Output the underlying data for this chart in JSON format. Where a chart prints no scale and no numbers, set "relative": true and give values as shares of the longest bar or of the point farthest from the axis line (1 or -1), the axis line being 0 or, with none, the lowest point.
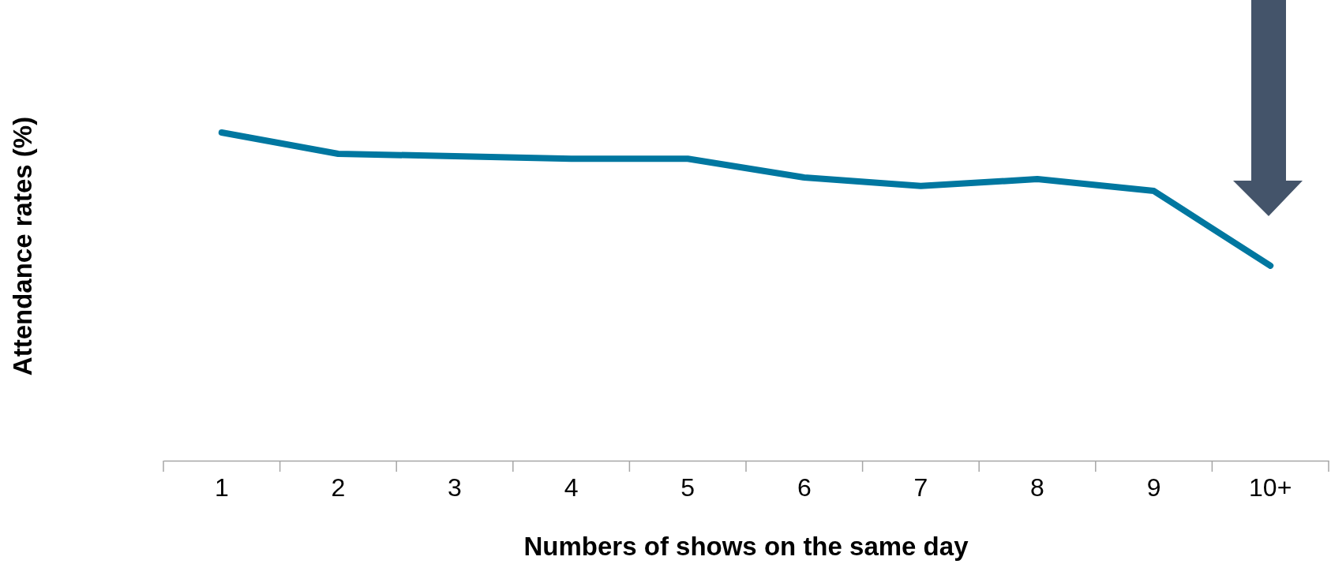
{
  "chart_data": {
    "type": "line",
    "relative": true,
    "xlabel": "Numbers of shows on the same day",
    "ylabel": "Attendance rates (%)",
    "categories": [
      "1",
      "2",
      "3",
      "4",
      "5",
      "6",
      "7",
      "8",
      "9",
      "10+"
    ],
    "series": [
      {
        "color": "#0077a0",
        "values": [
          1,
          0.935,
          0.928,
          0.92,
          0.92,
          0.863,
          0.837,
          0.858,
          0.822,
          0.594
        ]
      }
    ],
    "marker": "none",
    "line_style": "solid",
    "grid": false,
    "legend": false
  }
}
